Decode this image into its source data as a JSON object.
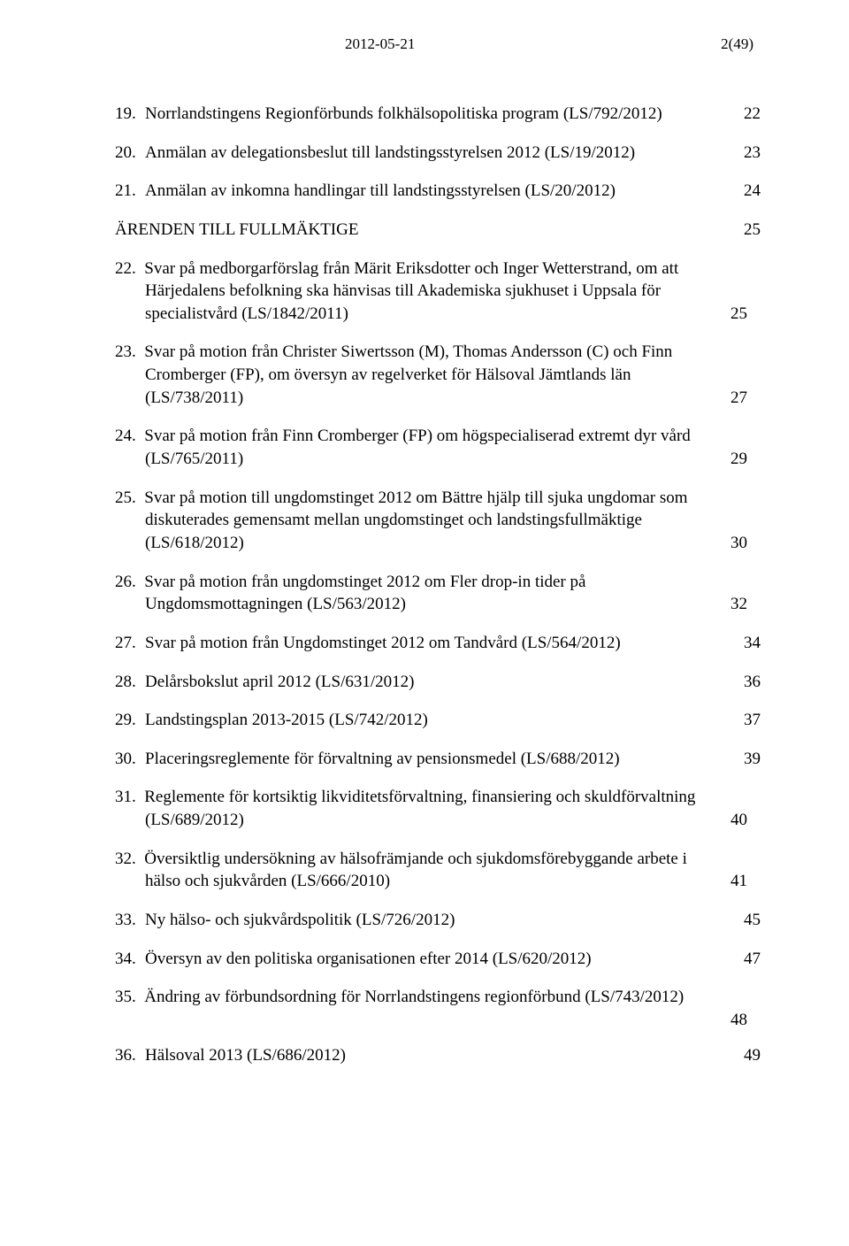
{
  "header": {
    "date": "2012-05-21",
    "pageref": "2(49)"
  },
  "section_heading": {
    "text": "ÄRENDEN TILL FULLMÄKTIGE",
    "page": "25"
  },
  "toc": [
    {
      "n": "19.",
      "text": "Norrlandstingens Regionförbunds folkhälsopolitiska program (LS/792/2012)",
      "page": "22",
      "multiline": false
    },
    {
      "n": "20.",
      "text": "Anmälan av delegationsbeslut till landstingsstyrelsen 2012 (LS/19/2012)",
      "page": "23",
      "multiline": false
    },
    {
      "n": "21.",
      "text": "Anmälan av inkomna handlingar till landstingsstyrelsen (LS/20/2012)",
      "page": "24",
      "multiline": false,
      "before_section": true
    },
    {
      "n": "22.",
      "text": "Svar på medborgarförslag från Märit Eriksdotter och Inger Wetterstrand, om att Härjedalens befolkning ska hänvisas till Akademiska sjukhuset i Uppsala för specialistvård (LS/1842/2011)",
      "page": "25",
      "multiline": true
    },
    {
      "n": "23.",
      "text": "Svar på motion från Christer Siwertsson (M), Thomas Andersson (C) och Finn Cromberger (FP), om översyn av regelverket för Hälsoval Jämtlands län (LS/738/2011)",
      "page": "27",
      "multiline": true
    },
    {
      "n": "24.",
      "text": "Svar på motion från Finn Cromberger (FP) om högspecialiserad extremt dyr vård (LS/765/2011)",
      "page": "29",
      "multiline": true
    },
    {
      "n": "25.",
      "text": "Svar på motion till ungdomstinget 2012 om Bättre hjälp till sjuka ungdomar som diskuterades gemensamt mellan ungdomstinget och landstingsfullmäktige (LS/618/2012)",
      "page": "30",
      "multiline": true
    },
    {
      "n": "26.",
      "text": "Svar på motion från ungdomstinget 2012 om Fler drop-in tider på Ungdomsmottagningen (LS/563/2012)",
      "page": "32",
      "multiline": true
    },
    {
      "n": "27.",
      "text": "Svar på motion från Ungdomstinget 2012 om Tandvård (LS/564/2012)",
      "page": "34",
      "multiline": false
    },
    {
      "n": "28.",
      "text": "Delårsbokslut april 2012 (LS/631/2012)",
      "page": "36",
      "multiline": false
    },
    {
      "n": "29.",
      "text": "Landstingsplan 2013-2015 (LS/742/2012)",
      "page": "37",
      "multiline": false
    },
    {
      "n": "30.",
      "text": "Placeringsreglemente för förvaltning av pensionsmedel (LS/688/2012)",
      "page": "39",
      "multiline": false
    },
    {
      "n": "31.",
      "text": "Reglemente för kortsiktig likviditetsförvaltning, finansiering och skuldförvaltning (LS/689/2012)",
      "page": "40",
      "multiline": true
    },
    {
      "n": "32.",
      "text": "Översiktlig undersökning av hälsofrämjande och sjukdomsförebyggande arbete i hälso och sjukvården (LS/666/2010)",
      "page": "41",
      "multiline": true
    },
    {
      "n": "33.",
      "text": "Ny hälso- och sjukvårdspolitik (LS/726/2012)",
      "page": "45",
      "multiline": false
    },
    {
      "n": "34.",
      "text": "Översyn av den politiska organisationen efter 2014 (LS/620/2012)",
      "page": "47",
      "multiline": false
    },
    {
      "n": "35.",
      "text": "Ändring av förbundsordning för Norrlandstingens regionförbund (LS/743/2012)",
      "page": "48",
      "multiline": true,
      "page_below": true
    },
    {
      "n": "36.",
      "text": "Hälsoval 2013 (LS/686/2012)",
      "page": "49",
      "multiline": false
    }
  ]
}
